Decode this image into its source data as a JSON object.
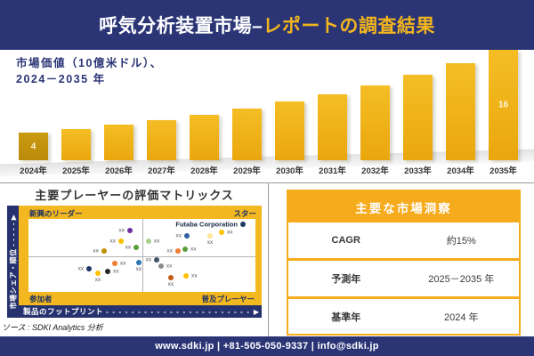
{
  "header": {
    "title_main": "呼気分析装置市場–",
    "title_accent": "レポートの調査結果"
  },
  "chart_data": [
    {
      "type": "bar",
      "title": "市場価値（10億米ドル）、2024－2035年",
      "title_line1": "市場価値（10億米ドル）、",
      "title_line2": "2024－2035 年",
      "unit": "10億米ドル",
      "categories": [
        "2024年",
        "2025年",
        "2026年",
        "2027年",
        "2028年",
        "2029年",
        "2030年",
        "2031年",
        "2032年",
        "2033年",
        "2034年",
        "2035年"
      ],
      "values": [
        4,
        4.5,
        5.1,
        5.8,
        6.6,
        7.5,
        8.5,
        9.6,
        10.9,
        12.4,
        14.1,
        16
      ],
      "bar_labels": [
        "4",
        "",
        "",
        "",
        "",
        "",
        "",
        "",
        "",
        "",
        "",
        "16"
      ],
      "ylim": [
        0,
        16
      ],
      "grid": false,
      "bar_color": "#EFB017",
      "first_bar_color": "#C3910C"
    },
    {
      "type": "scatter",
      "title": "主要プレーヤーの評価マトリックス",
      "x_axis": "製品のフットプリント",
      "y_axis": "市場シェア・順位",
      "y_axis_line": "市場シェア・順位 - - - - -",
      "x_axis_dashes": "- - - - - - - - - - - - - - - - - - - - - - - - - - - - - - - -",
      "quadrants": {
        "top_left": "新興のリーダー",
        "top_right": "スター",
        "bottom_left": "参加者",
        "bottom_right": "普及プレーヤー"
      },
      "highlighted_company": "Futaba Corporation",
      "points": [
        {
          "x": 44.7,
          "y": 16,
          "color": "#7030A0",
          "label": "xx",
          "side": "left"
        },
        {
          "x": 40.8,
          "y": 30,
          "color": "#FFC000",
          "label": "xx",
          "side": "left"
        },
        {
          "x": 33.3,
          "y": 44,
          "color": "#BF8F00",
          "label": "xx",
          "side": "left"
        },
        {
          "x": 47.5,
          "y": 39,
          "color": "#5B9B38",
          "label": "xx",
          "side": "left"
        },
        {
          "x": 38.0,
          "y": 61,
          "color": "#ED7D31",
          "label": "xx",
          "side": "right"
        },
        {
          "x": 48.6,
          "y": 60,
          "color": "#2E75B6",
          "label": "xx",
          "side": "below"
        },
        {
          "x": 26.7,
          "y": 68,
          "color": "#1F3864",
          "label": "xx",
          "side": "left"
        },
        {
          "x": 34.9,
          "y": 72,
          "color": "#262626",
          "label": "xx",
          "side": "right"
        },
        {
          "x": 30.6,
          "y": 74,
          "color": "#FFC000",
          "label": "xx",
          "side": "below"
        },
        {
          "x": 94.5,
          "y": 7,
          "color": "#1F3864",
          "label": "Futaba Corporation",
          "side": "left",
          "emph": true
        },
        {
          "x": 85.1,
          "y": 18,
          "color": "#FFC000",
          "label": "xx",
          "side": "right"
        },
        {
          "x": 69.8,
          "y": 23,
          "color": "#2E5FA3",
          "label": "xx",
          "side": "left"
        },
        {
          "x": 80.0,
          "y": 23,
          "color": "#FFE699",
          "label": "xx",
          "side": "below"
        },
        {
          "x": 52.9,
          "y": 30,
          "color": "#A9D08E",
          "label": "xx",
          "side": "right"
        },
        {
          "x": 69.0,
          "y": 41,
          "color": "#5B9B38",
          "label": "xx",
          "side": "right"
        },
        {
          "x": 65.9,
          "y": 44,
          "color": "#ED7D31",
          "label": "xx",
          "side": "left"
        },
        {
          "x": 56.5,
          "y": 56,
          "color": "#44546A",
          "label": "xx",
          "side": "left"
        },
        {
          "x": 58.4,
          "y": 65,
          "color": "#8C8C8C",
          "label": "xx",
          "side": "right"
        },
        {
          "x": 62.7,
          "y": 80,
          "color": "#C55A11",
          "label": "xx",
          "side": "below"
        },
        {
          "x": 69.4,
          "y": 78,
          "color": "#FFC000",
          "label": "xx",
          "side": "right"
        }
      ]
    },
    {
      "type": "table",
      "title": "主要な市場洞察",
      "rows": [
        [
          "CAGR",
          "約15%"
        ],
        [
          "予測年",
          "2025－2035 年"
        ],
        [
          "基準年",
          "2024 年"
        ]
      ]
    }
  ],
  "icons": {
    "up_arrow": "▶",
    "right_arrow": "▶"
  },
  "source_note": "ソース : SDKI Analytics 分析",
  "footer": {
    "text": "www.sdki.jp | +81-505-050-9337 | info@sdki.jp"
  },
  "colors": {
    "navy": "#2B3576",
    "gold_accent": "#F2B51D",
    "matrix_yellow": "#F3B71F",
    "insights_gold": "#F5AB1C",
    "bar_gold": "#EFB017",
    "first_bar_gold": "#C3910C"
  }
}
